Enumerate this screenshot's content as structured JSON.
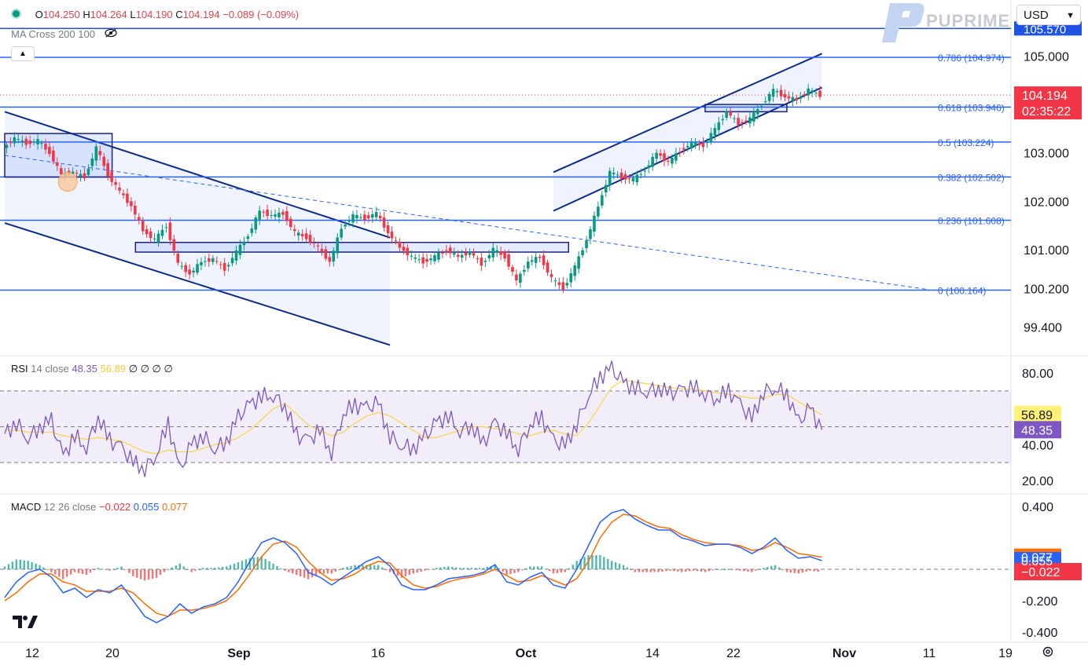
{
  "header": {
    "dot_color": "#089981",
    "o_label": "O",
    "o_value": "104.250",
    "h_label": "H",
    "h_value": "104.264",
    "l_label": "L",
    "l_value": "104.190",
    "c_label": "C",
    "c_value": "104.194",
    "change": "−0.089 (−0.09%)",
    "indicator_label": "MA Cross 200 100",
    "collapse_icon": "chevron-up-icon",
    "visibility_icon": "eye-off-icon"
  },
  "brand": {
    "logo_text": "PUPRIME",
    "logo_icon": "puprime-logo-icon",
    "tv_logo": "TradingView-logo"
  },
  "currency_select": {
    "value": "USD",
    "icon": "chevron-down-icon"
  },
  "settings_icon": "gear-icon",
  "rsi_legend": {
    "name": "RSI",
    "params": "14 close",
    "v1": "48.35",
    "v2": "56.89",
    "extra": "∅ ∅ ∅ ∅"
  },
  "macd_legend": {
    "name": "MACD",
    "params": "12 26 close",
    "hist": "−0.022",
    "macd": "0.055",
    "signal": "0.077"
  },
  "colors": {
    "up": "#089981",
    "down": "#f23645",
    "fib": "#2962ff",
    "channel": "#0c2a8a",
    "rsi": "#7e57c2",
    "rsi_ma": "#f7d654",
    "macd": "#2962ff",
    "signal": "#ff6d00"
  },
  "chart_data": [
    {
      "type": "candlestick",
      "title": "",
      "ylim": [
        99.0,
        105.8
      ],
      "price_ticks": [
        "105.000",
        "103.000",
        "102.000",
        "101.000",
        "100.200",
        "99.400"
      ],
      "top_partial_label": "105.570",
      "last_price": "104.194",
      "countdown": "02:35:22",
      "fib_levels": [
        {
          "label": "0.786 (104.974)",
          "value": 104.974
        },
        {
          "label": "0.618 (103.946)",
          "value": 103.946
        },
        {
          "label": "0.5 (103.224)",
          "value": 103.224
        },
        {
          "label": "0.382 (102.502)",
          "value": 102.502
        },
        {
          "label": "0.236 (101.608)",
          "value": 101.608
        },
        {
          "label": "0 (100.164)",
          "value": 100.164
        }
      ],
      "top_level_value": 105.57,
      "x_ticks": [
        "12",
        "20",
        "Sep",
        "16",
        "Oct",
        "14",
        "22",
        "Nov",
        "11",
        "19"
      ],
      "path": [
        [
          0,
          103.1
        ],
        [
          1,
          103.3
        ],
        [
          2,
          103.2
        ],
        [
          3,
          103.25
        ],
        [
          4,
          103.0
        ],
        [
          5,
          102.55
        ],
        [
          6,
          102.6
        ],
        [
          7,
          102.5
        ],
        [
          8,
          103.1
        ],
        [
          9,
          102.55
        ],
        [
          10,
          102.2
        ],
        [
          11,
          101.9
        ],
        [
          12,
          101.4
        ],
        [
          13,
          101.2
        ],
        [
          14,
          101.5
        ],
        [
          15,
          100.7
        ],
        [
          16,
          100.5
        ],
        [
          17,
          100.75
        ],
        [
          18,
          100.8
        ],
        [
          19,
          100.6
        ],
        [
          20,
          100.95
        ],
        [
          21,
          101.3
        ],
        [
          22,
          101.8
        ],
        [
          23,
          101.7
        ],
        [
          24,
          101.75
        ],
        [
          25,
          101.35
        ],
        [
          26,
          101.25
        ],
        [
          27,
          101.05
        ],
        [
          28,
          100.75
        ],
        [
          29,
          101.45
        ],
        [
          30,
          101.7
        ],
        [
          31,
          101.65
        ],
        [
          32,
          101.75
        ],
        [
          33,
          101.35
        ],
        [
          34,
          101.05
        ],
        [
          35,
          100.85
        ],
        [
          36,
          100.75
        ],
        [
          37,
          100.85
        ],
        [
          38,
          101.0
        ],
        [
          39,
          100.85
        ],
        [
          40,
          100.95
        ],
        [
          41,
          100.7
        ],
        [
          42,
          101.0
        ],
        [
          43,
          100.85
        ],
        [
          44,
          100.35
        ],
        [
          45,
          100.75
        ],
        [
          46,
          100.85
        ],
        [
          47,
          100.4
        ],
        [
          48,
          100.2
        ],
        [
          49,
          100.65
        ],
        [
          50,
          101.2
        ],
        [
          51,
          101.9
        ],
        [
          52,
          102.6
        ],
        [
          53,
          102.5
        ],
        [
          54,
          102.45
        ],
        [
          55,
          102.65
        ],
        [
          56,
          103.0
        ],
        [
          57,
          102.8
        ],
        [
          58,
          103.05
        ],
        [
          59,
          103.2
        ],
        [
          60,
          103.15
        ],
        [
          61,
          103.5
        ],
        [
          62,
          103.85
        ],
        [
          63,
          103.6
        ],
        [
          64,
          103.7
        ],
        [
          65,
          104.0
        ],
        [
          66,
          104.3
        ],
        [
          67,
          104.15
        ],
        [
          68,
          104.1
        ],
        [
          69,
          104.3
        ],
        [
          70,
          104.19
        ]
      ],
      "channels": [
        {
          "name": "descending",
          "upper": [
            [
              0,
              103.85
            ],
            [
              33,
              101.25
            ]
          ],
          "lower": [
            [
              0,
              101.55
            ],
            [
              33,
              99.03
            ]
          ]
        },
        {
          "name": "ascending",
          "upper": [
            [
              47,
              102.6
            ],
            [
              70,
              105.05
            ]
          ],
          "lower": [
            [
              47,
              101.8
            ],
            [
              70,
              104.35
            ]
          ]
        }
      ],
      "dashed_trend": [
        [
          0,
          102.95
        ],
        [
          79,
          100.18
        ]
      ],
      "boxes": [
        {
          "x": [
            0,
            9.2
          ],
          "y": [
            102.5,
            103.4
          ]
        },
        {
          "x": [
            11.2,
            48.3
          ],
          "y": [
            100.95,
            101.15
          ]
        },
        {
          "x": [
            60,
            67
          ],
          "y": [
            103.85,
            104.0
          ]
        }
      ],
      "marker": {
        "x": 5.4,
        "y": 102.4
      }
    },
    {
      "type": "line",
      "title": "RSI",
      "ylim": [
        10,
        90
      ],
      "ticks": [
        "80.00",
        "40.00",
        "20.00"
      ],
      "bands": [
        30,
        70
      ],
      "mid": 50,
      "rsi": [
        46,
        52,
        44,
        50,
        53,
        33,
        45,
        39,
        56,
        42,
        38,
        30,
        27,
        35,
        52,
        25,
        40,
        45,
        38,
        42,
        55,
        62,
        67,
        68,
        62,
        45,
        42,
        48,
        36,
        58,
        62,
        60,
        63,
        45,
        40,
        38,
        44,
        52,
        56,
        48,
        51,
        40,
        52,
        46,
        38,
        52,
        55,
        42,
        39,
        52,
        68,
        78,
        82,
        74,
        72,
        70,
        72,
        68,
        70,
        72,
        69,
        66,
        70,
        62,
        54,
        70,
        72,
        68,
        52,
        60,
        48
      ],
      "rsi_ma": [
        48,
        48,
        47,
        47,
        47,
        45,
        44,
        43,
        44,
        43,
        42,
        39,
        36,
        35,
        37,
        36,
        36,
        38,
        40,
        41,
        44,
        48,
        54,
        60,
        63,
        57,
        51,
        48,
        45,
        47,
        52,
        56,
        58,
        56,
        52,
        48,
        44,
        44,
        46,
        48,
        50,
        50,
        49,
        48,
        46,
        45,
        47,
        48,
        46,
        45,
        52,
        62,
        72,
        76,
        75,
        74,
        73,
        72,
        71,
        71,
        70,
        69,
        68,
        67,
        66,
        66,
        68,
        68,
        64,
        60,
        57
      ],
      "last_rsi": "48.35",
      "last_ma": "56.89"
    },
    {
      "type": "bar+line",
      "title": "MACD",
      "ylim": [
        -0.45,
        0.45
      ],
      "ticks": [
        "0.400",
        "-0.200",
        "-0.400"
      ],
      "macd": [
        -0.18,
        -0.08,
        -0.02,
        0.0,
        -0.05,
        -0.15,
        -0.12,
        -0.18,
        -0.13,
        -0.15,
        -0.1,
        -0.2,
        -0.3,
        -0.34,
        -0.3,
        -0.22,
        -0.28,
        -0.24,
        -0.22,
        -0.18,
        -0.08,
        0.05,
        0.17,
        0.2,
        0.17,
        0.1,
        -0.02,
        -0.05,
        -0.1,
        -0.05,
        0.0,
        0.05,
        0.08,
        0.02,
        -0.1,
        -0.13,
        -0.13,
        -0.1,
        -0.06,
        -0.05,
        -0.04,
        -0.02,
        0.03,
        -0.08,
        -0.1,
        -0.05,
        -0.02,
        -0.1,
        -0.12,
        0.0,
        0.15,
        0.3,
        0.36,
        0.38,
        0.32,
        0.28,
        0.25,
        0.25,
        0.2,
        0.18,
        0.15,
        0.16,
        0.16,
        0.14,
        0.1,
        0.14,
        0.2,
        0.12,
        0.07,
        0.08,
        0.055
      ],
      "signal": [
        -0.2,
        -0.15,
        -0.08,
        -0.03,
        -0.03,
        -0.08,
        -0.1,
        -0.14,
        -0.14,
        -0.14,
        -0.12,
        -0.15,
        -0.22,
        -0.28,
        -0.3,
        -0.26,
        -0.26,
        -0.25,
        -0.23,
        -0.2,
        -0.13,
        -0.03,
        0.08,
        0.16,
        0.18,
        0.14,
        0.05,
        -0.02,
        -0.07,
        -0.06,
        -0.03,
        0.02,
        0.05,
        0.04,
        -0.04,
        -0.1,
        -0.12,
        -0.11,
        -0.08,
        -0.06,
        -0.05,
        -0.03,
        0.0,
        -0.04,
        -0.08,
        -0.07,
        -0.04,
        -0.07,
        -0.1,
        -0.06,
        0.05,
        0.2,
        0.3,
        0.35,
        0.34,
        0.3,
        0.27,
        0.26,
        0.22,
        0.19,
        0.17,
        0.16,
        0.16,
        0.15,
        0.12,
        0.13,
        0.17,
        0.14,
        0.1,
        0.09,
        0.077
      ],
      "last_macd": "0.055",
      "last_signal": "0.077",
      "last_hist": "−0.022"
    }
  ]
}
